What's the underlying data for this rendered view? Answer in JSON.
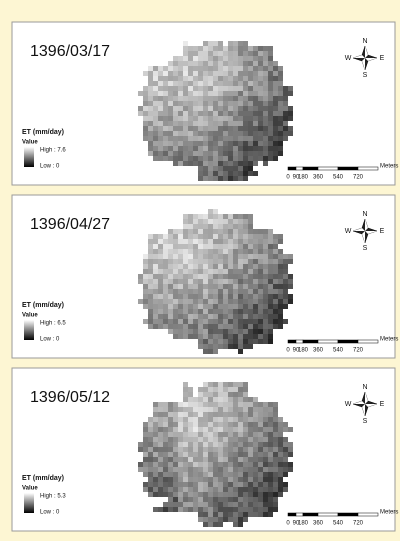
{
  "panels": [
    {
      "date": "1396/03/17",
      "legend": {
        "title": "ET (mm/day)",
        "subtitle": "Value",
        "high": "High : 7.6",
        "low": "Low : 0"
      }
    },
    {
      "date": "1396/04/27",
      "legend": {
        "title": "ET (mm/day)",
        "subtitle": "Value",
        "high": "High : 6.5",
        "low": "Low : 0"
      }
    },
    {
      "date": "1396/05/12",
      "legend": {
        "title": "ET (mm/day)",
        "subtitle": "Value",
        "high": "High : 5.3",
        "low": "Low : 0"
      }
    }
  ],
  "scale_bar": {
    "labels": [
      "0",
      "90",
      "180",
      "360",
      "540",
      "720"
    ],
    "unit": "Meters"
  },
  "north_arrow": {
    "n": "N",
    "s": "S",
    "e": "E",
    "w": "W"
  }
}
